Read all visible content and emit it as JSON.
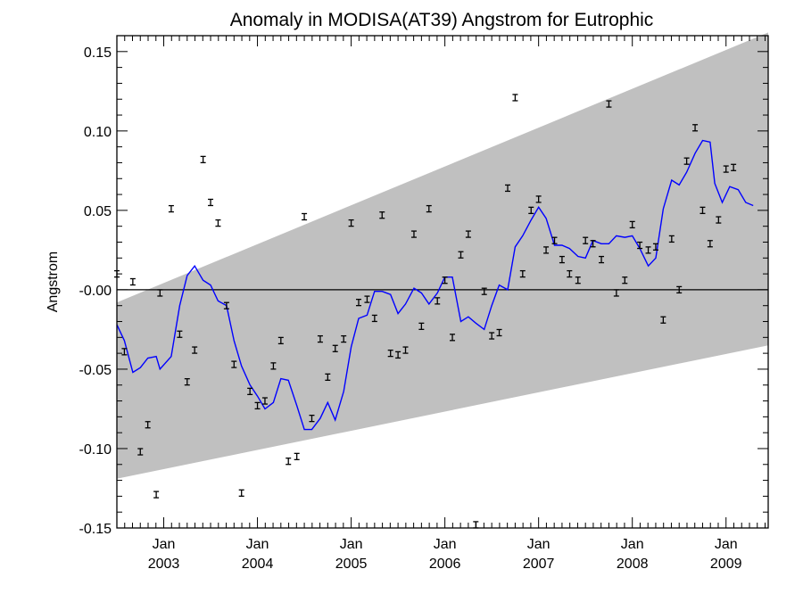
{
  "chart_data": {
    "type": "line",
    "title": "Anomaly in MODISA(AT39) Angstrom for Eutrophic",
    "xlabel": "",
    "ylabel": "Angstrom",
    "xlim": [
      2002.5,
      2009.45
    ],
    "ylim": [
      -0.15,
      0.16
    ],
    "yticks": [
      {
        "value": 0.15,
        "label": "0.15"
      },
      {
        "value": 0.1,
        "label": "0.10"
      },
      {
        "value": 0.05,
        "label": "0.05"
      },
      {
        "value": 0.0,
        "label": "-0.00"
      },
      {
        "value": -0.05,
        "label": "-0.05"
      },
      {
        "value": -0.1,
        "label": "-0.10"
      },
      {
        "value": -0.15,
        "label": "-0.15"
      }
    ],
    "xticks": [
      {
        "value": 2003.0,
        "month": "Jan",
        "year": "2003"
      },
      {
        "value": 2004.0,
        "month": "Jan",
        "year": "2004"
      },
      {
        "value": 2005.0,
        "month": "Jan",
        "year": "2005"
      },
      {
        "value": 2006.0,
        "month": "Jan",
        "year": "2006"
      },
      {
        "value": 2007.0,
        "month": "Jan",
        "year": "2007"
      },
      {
        "value": 2008.0,
        "month": "Jan",
        "year": "2008"
      },
      {
        "value": 2009.0,
        "month": "Jan",
        "year": "2009"
      }
    ],
    "grid": false,
    "confidence_band": {
      "color": "#c0c0c0",
      "upper": [
        [
          2002.5,
          -0.008
        ],
        [
          2009.45,
          0.162
        ]
      ],
      "lower": [
        [
          2002.5,
          -0.119
        ],
        [
          2009.45,
          -0.035
        ]
      ]
    },
    "zero_line": 0.0,
    "series": [
      {
        "style": "line",
        "color": "#0000ff",
        "points": [
          [
            2002.5,
            -0.022
          ],
          [
            2002.58,
            -0.032
          ],
          [
            2002.67,
            -0.052
          ],
          [
            2002.75,
            -0.049
          ],
          [
            2002.83,
            -0.043
          ],
          [
            2002.92,
            -0.042
          ],
          [
            2002.96,
            -0.05
          ],
          [
            2003.08,
            -0.042
          ],
          [
            2003.17,
            -0.01
          ],
          [
            2003.25,
            0.009
          ],
          [
            2003.33,
            0.015
          ],
          [
            2003.42,
            0.006
          ],
          [
            2003.5,
            0.003
          ],
          [
            2003.58,
            -0.007
          ],
          [
            2003.67,
            -0.01
          ],
          [
            2003.75,
            -0.032
          ],
          [
            2003.83,
            -0.048
          ],
          [
            2003.92,
            -0.06
          ],
          [
            2004.0,
            -0.067
          ],
          [
            2004.08,
            -0.075
          ],
          [
            2004.17,
            -0.071
          ],
          [
            2004.25,
            -0.056
          ],
          [
            2004.33,
            -0.057
          ],
          [
            2004.42,
            -0.073
          ],
          [
            2004.5,
            -0.088
          ],
          [
            2004.58,
            -0.088
          ],
          [
            2004.67,
            -0.081
          ],
          [
            2004.75,
            -0.071
          ],
          [
            2004.83,
            -0.082
          ],
          [
            2004.92,
            -0.064
          ],
          [
            2005.0,
            -0.036
          ],
          [
            2005.08,
            -0.018
          ],
          [
            2005.17,
            -0.016
          ],
          [
            2005.25,
            -0.001
          ],
          [
            2005.33,
            -0.001
          ],
          [
            2005.42,
            -0.003
          ],
          [
            2005.5,
            -0.015
          ],
          [
            2005.58,
            -0.009
          ],
          [
            2005.67,
            0.001
          ],
          [
            2005.75,
            -0.002
          ],
          [
            2005.83,
            -0.009
          ],
          [
            2005.92,
            -0.002
          ],
          [
            2006.0,
            0.008
          ],
          [
            2006.08,
            0.008
          ],
          [
            2006.17,
            -0.02
          ],
          [
            2006.25,
            -0.017
          ],
          [
            2006.33,
            -0.021
          ],
          [
            2006.42,
            -0.025
          ],
          [
            2006.5,
            -0.01
          ],
          [
            2006.58,
            0.003
          ],
          [
            2006.67,
            0.0
          ],
          [
            2006.75,
            0.027
          ],
          [
            2006.83,
            0.034
          ],
          [
            2006.92,
            0.044
          ],
          [
            2007.0,
            0.052
          ],
          [
            2007.08,
            0.045
          ],
          [
            2007.17,
            0.028
          ],
          [
            2007.25,
            0.028
          ],
          [
            2007.33,
            0.026
          ],
          [
            2007.42,
            0.021
          ],
          [
            2007.5,
            0.02
          ],
          [
            2007.58,
            0.031
          ],
          [
            2007.67,
            0.029
          ],
          [
            2007.75,
            0.029
          ],
          [
            2007.83,
            0.034
          ],
          [
            2007.92,
            0.033
          ],
          [
            2008.0,
            0.034
          ],
          [
            2008.08,
            0.026
          ],
          [
            2008.17,
            0.015
          ],
          [
            2008.25,
            0.02
          ],
          [
            2008.33,
            0.051
          ],
          [
            2008.42,
            0.069
          ],
          [
            2008.5,
            0.066
          ],
          [
            2008.58,
            0.074
          ],
          [
            2008.67,
            0.086
          ],
          [
            2008.75,
            0.094
          ],
          [
            2008.83,
            0.093
          ],
          [
            2008.88,
            0.067
          ],
          [
            2008.96,
            0.055
          ],
          [
            2009.04,
            0.065
          ],
          [
            2009.13,
            0.063
          ],
          [
            2009.21,
            0.055
          ],
          [
            2009.29,
            0.053
          ]
        ]
      },
      {
        "style": "errorbar",
        "color": "#000000",
        "points": [
          [
            2002.5,
            0.01
          ],
          [
            2002.58,
            -0.039
          ],
          [
            2002.67,
            0.005
          ],
          [
            2002.75,
            -0.102
          ],
          [
            2002.83,
            -0.085
          ],
          [
            2002.92,
            -0.129
          ],
          [
            2002.96,
            -0.002
          ],
          [
            2003.08,
            0.051
          ],
          [
            2003.17,
            -0.028
          ],
          [
            2003.25,
            -0.058
          ],
          [
            2003.33,
            -0.038
          ],
          [
            2003.42,
            0.082
          ],
          [
            2003.5,
            0.055
          ],
          [
            2003.58,
            0.042
          ],
          [
            2003.67,
            -0.01
          ],
          [
            2003.75,
            -0.047
          ],
          [
            2003.83,
            -0.128
          ],
          [
            2003.92,
            -0.064
          ],
          [
            2004.0,
            -0.073
          ],
          [
            2004.08,
            -0.07
          ],
          [
            2004.17,
            -0.048
          ],
          [
            2004.25,
            -0.032
          ],
          [
            2004.33,
            -0.108
          ],
          [
            2004.42,
            -0.105
          ],
          [
            2004.5,
            0.046
          ],
          [
            2004.58,
            -0.081
          ],
          [
            2004.67,
            -0.031
          ],
          [
            2004.75,
            -0.055
          ],
          [
            2004.83,
            -0.037
          ],
          [
            2004.92,
            -0.031
          ],
          [
            2005.0,
            0.042
          ],
          [
            2005.08,
            -0.008
          ],
          [
            2005.17,
            -0.006
          ],
          [
            2005.25,
            -0.018
          ],
          [
            2005.33,
            0.047
          ],
          [
            2005.42,
            -0.04
          ],
          [
            2005.5,
            -0.041
          ],
          [
            2005.58,
            -0.038
          ],
          [
            2005.67,
            0.035
          ],
          [
            2005.75,
            -0.023
          ],
          [
            2005.83,
            0.051
          ],
          [
            2005.92,
            -0.007
          ],
          [
            2006.0,
            0.006
          ],
          [
            2006.08,
            -0.03
          ],
          [
            2006.17,
            0.022
          ],
          [
            2006.25,
            0.035
          ],
          [
            2006.33,
            -0.148
          ],
          [
            2006.42,
            -0.001
          ],
          [
            2006.5,
            -0.029
          ],
          [
            2006.58,
            -0.027
          ],
          [
            2006.67,
            0.064
          ],
          [
            2006.75,
            0.121
          ],
          [
            2006.83,
            0.01
          ],
          [
            2006.92,
            0.05
          ],
          [
            2007.0,
            0.057
          ],
          [
            2007.08,
            0.025
          ],
          [
            2007.17,
            0.031
          ],
          [
            2007.25,
            0.019
          ],
          [
            2007.33,
            0.01
          ],
          [
            2007.42,
            0.006
          ],
          [
            2007.5,
            0.031
          ],
          [
            2007.58,
            0.029
          ],
          [
            2007.67,
            0.019
          ],
          [
            2007.75,
            0.117
          ],
          [
            2007.83,
            -0.002
          ],
          [
            2007.92,
            0.006
          ],
          [
            2008.0,
            0.041
          ],
          [
            2008.08,
            0.028
          ],
          [
            2008.17,
            0.025
          ],
          [
            2008.25,
            0.027
          ],
          [
            2008.33,
            -0.019
          ],
          [
            2008.42,
            0.032
          ],
          [
            2008.5,
            0.0
          ],
          [
            2008.58,
            0.081
          ],
          [
            2008.67,
            0.102
          ],
          [
            2008.75,
            0.05
          ],
          [
            2008.83,
            0.029
          ],
          [
            2008.92,
            0.044
          ],
          [
            2009.0,
            0.076
          ],
          [
            2009.08,
            0.077
          ]
        ]
      }
    ],
    "colors": {
      "band": "#c0c0c0",
      "line": "#0000ff",
      "markers": "#000000",
      "axes": "#000000"
    }
  }
}
